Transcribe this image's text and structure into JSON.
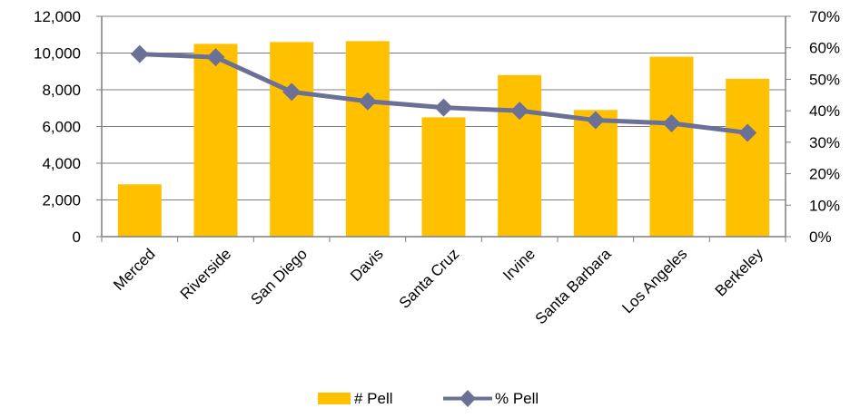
{
  "chart_data": {
    "type": "bar",
    "categories": [
      "Merced",
      "Riverside",
      "San Diego",
      "Davis",
      "Santa Cruz",
      "Irvine",
      "Santa Barbara",
      "Los Angeles",
      "Berkeley"
    ],
    "series": [
      {
        "name": "# Pell",
        "type": "bar",
        "axis": "left",
        "color": "#FFC000",
        "values": [
          2850,
          10500,
          10600,
          10650,
          6500,
          8800,
          6900,
          9800,
          8600
        ]
      },
      {
        "name": "% Pell",
        "type": "line",
        "axis": "right",
        "color": "#6B7097",
        "marker": "diamond",
        "values": [
          0.58,
          0.57,
          0.46,
          0.43,
          0.41,
          0.4,
          0.37,
          0.36,
          0.33
        ]
      }
    ],
    "y_left": {
      "ylim": [
        0,
        12000
      ],
      "ticks": [
        0,
        2000,
        4000,
        6000,
        8000,
        10000,
        12000
      ],
      "tick_labels": [
        "0",
        "2,000",
        "4,000",
        "6,000",
        "8,000",
        "10,000",
        "12,000"
      ]
    },
    "y_right": {
      "ylim": [
        0,
        0.7
      ],
      "ticks": [
        0,
        0.1,
        0.2,
        0.3,
        0.4,
        0.5,
        0.6,
        0.7
      ],
      "tick_labels": [
        "0%",
        "10%",
        "20%",
        "30%",
        "40%",
        "50%",
        "60%",
        "70%"
      ]
    },
    "grid": true,
    "legend": "bottom",
    "title": "",
    "xlabel": "",
    "ylabel": ""
  }
}
